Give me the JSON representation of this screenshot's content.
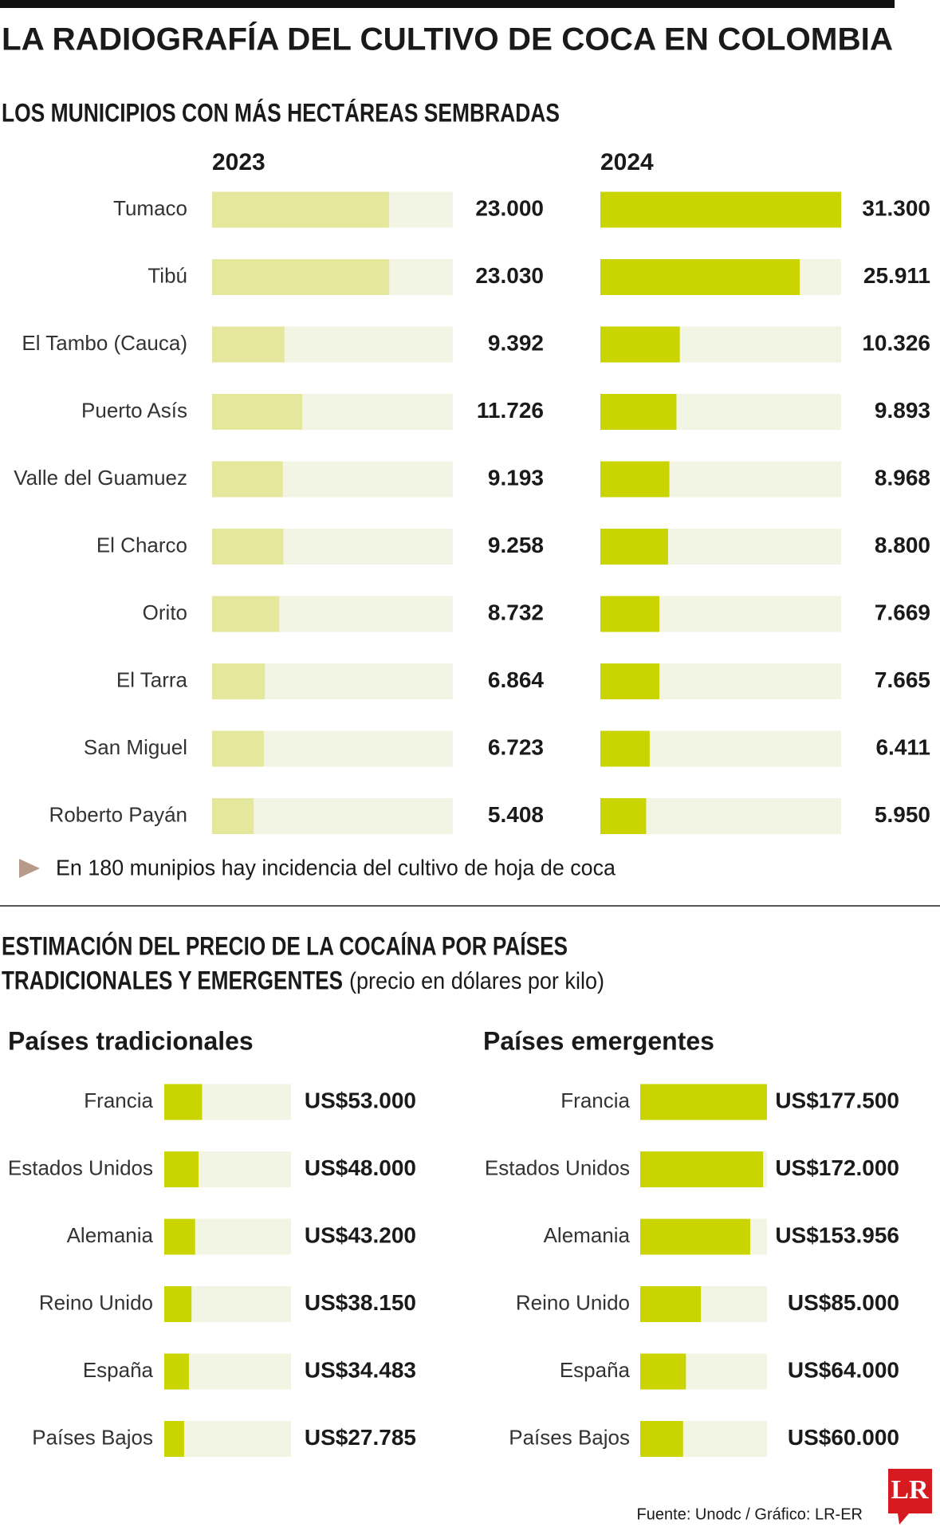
{
  "title": "LA RADIOGRAFÍA DEL CULTIVO DE COCA EN COLOMBIA",
  "note": "En 180 munipios hay incidencia del cultivo de hoja de coca",
  "unit": "(precio en dólares por kilo)",
  "source": "Fuente: Unodc / Gráfico: LR-ER",
  "logo": "LR",
  "chart_data": [
    {
      "type": "bar",
      "title": "LOS MUNICIPIOS CON MÁS HECTÁREAS SEMBRADAS",
      "categories": [
        "Tumaco",
        "Tibú",
        "El Tambo (Cauca)",
        "Puerto Asís",
        "Valle del Guamuez",
        "El Charco",
        "Orito",
        "El Tarra",
        "San Miguel",
        "Roberto Payán"
      ],
      "xlim": [
        0,
        31300
      ],
      "series": [
        {
          "name": "2023",
          "color": "#e4e79c",
          "values": [
            23000,
            23030,
            9392,
            11726,
            9193,
            9258,
            8732,
            6864,
            6723,
            5408
          ],
          "value_labels": [
            "23.000",
            "23.030",
            "9.392",
            "11.726",
            "9.193",
            "9.258",
            "8.732",
            "6.864",
            "6.723",
            "5.408"
          ]
        },
        {
          "name": "2024",
          "color": "#c9d400",
          "values": [
            31300,
            25911,
            10326,
            9893,
            8968,
            8800,
            7669,
            7665,
            6411,
            5950
          ],
          "value_labels": [
            "31.300",
            "25.911",
            "10.326",
            "9.893",
            "8.968",
            "8.800",
            "7.669",
            "7.665",
            "6.411",
            "5.950"
          ]
        }
      ]
    },
    {
      "type": "bar",
      "title": [
        "ESTIMACIÓN DEL PRECIO DE LA COCAÍNA POR PAÍSES",
        "TRADICIONALES Y EMERGENTES"
      ],
      "categories": [
        "Francia",
        "Estados Unidos",
        "Alemania",
        "Reino Unido",
        "España",
        "Países Bajos"
      ],
      "xlim": [
        0,
        177500
      ],
      "series": [
        {
          "name": "Países tradicionales",
          "color": "#c9d400",
          "values": [
            53000,
            48000,
            43200,
            38150,
            34483,
            27785
          ],
          "value_labels": [
            "US$53.000",
            "US$48.000",
            "US$43.200",
            "US$38.150",
            "US$34.483",
            "US$27.785"
          ]
        },
        {
          "name": "Países emergentes",
          "color": "#c9d400",
          "values": [
            177500,
            172000,
            153956,
            85000,
            64000,
            60000
          ],
          "value_labels": [
            "US$177.500",
            "US$172.000",
            "US$153.956",
            "US$85.000",
            "US$64.000",
            "US$60.000"
          ]
        }
      ]
    }
  ]
}
